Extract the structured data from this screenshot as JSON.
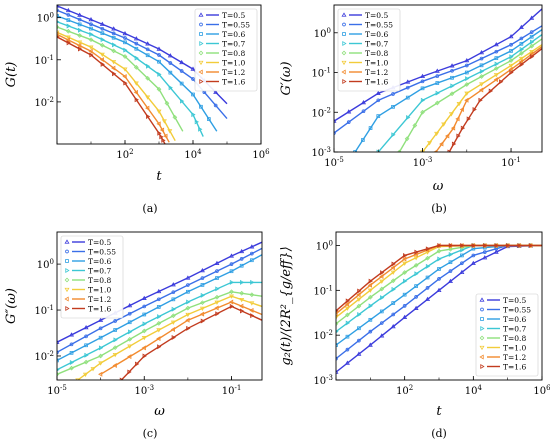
{
  "temperatures": [
    "T=0.5",
    "T=0.55",
    "T=0.6",
    "T=0.7",
    "T=0.8",
    "T=1.0",
    "T=1.2",
    "T=1.6"
  ],
  "series_colors": [
    "#3b3bdc",
    "#3a6fe8",
    "#2f9fe3",
    "#3cc7d4",
    "#8fe07c",
    "#f2cc3a",
    "#f28a2e",
    "#c23b1e"
  ],
  "marker_shapes": [
    "triangle",
    "circle",
    "square",
    "triangle-right",
    "diamond",
    "triangle-down",
    "triangle-left",
    "triangle-right"
  ],
  "chart_data": [
    {
      "type": "line",
      "panel_label": "(a)",
      "xlabel": "t",
      "ylabel": "G(t)",
      "xscale": "log",
      "yscale": "log",
      "xlim": [
        1,
        1000000
      ],
      "ylim": [
        0.001,
        2
      ],
      "xticks": [
        "10^2",
        "10^4",
        "10^6"
      ],
      "yticks": [
        "10^{-2}",
        "10^{-1}",
        "10^0"
      ],
      "legend_position": "top-right",
      "series": [
        {
          "name": "T=0.5",
          "x": [
            1,
            10,
            100,
            1000,
            10000,
            100000
          ],
          "y": [
            1.9,
            0.9,
            0.42,
            0.18,
            0.06,
            0.009
          ]
        },
        {
          "name": "T=0.55",
          "x": [
            1,
            10,
            100,
            1000,
            10000,
            100000
          ],
          "y": [
            1.5,
            0.7,
            0.33,
            0.13,
            0.035,
            0.004
          ]
        },
        {
          "name": "T=0.6",
          "x": [
            1,
            10,
            100,
            1000,
            10000,
            50000
          ],
          "y": [
            1.1,
            0.55,
            0.26,
            0.09,
            0.015,
            0.002
          ]
        },
        {
          "name": "T=0.7",
          "x": [
            1,
            10,
            100,
            1000,
            10000,
            20000
          ],
          "y": [
            0.8,
            0.4,
            0.17,
            0.045,
            0.005,
            0.0015
          ]
        },
        {
          "name": "T=0.8",
          "x": [
            1,
            10,
            100,
            1000,
            5000
          ],
          "y": [
            0.6,
            0.3,
            0.12,
            0.02,
            0.002
          ]
        },
        {
          "name": "T=1.0",
          "x": [
            1,
            10,
            100,
            1000,
            3000
          ],
          "y": [
            0.45,
            0.2,
            0.06,
            0.006,
            0.0012
          ]
        },
        {
          "name": "T=1.2",
          "x": [
            1,
            10,
            100,
            1000,
            2000
          ],
          "y": [
            0.4,
            0.16,
            0.04,
            0.003,
            0.0011
          ]
        },
        {
          "name": "T=1.6",
          "x": [
            1,
            10,
            100,
            1000,
            1500
          ],
          "y": [
            0.35,
            0.13,
            0.028,
            0.0018,
            0.001
          ]
        }
      ]
    },
    {
      "type": "line",
      "panel_label": "(b)",
      "xlabel": "ω",
      "ylabel": "G′(ω)",
      "xscale": "log",
      "yscale": "log",
      "xlim": [
        1e-05,
        0.5
      ],
      "ylim": [
        0.001,
        5
      ],
      "xticks": [
        "10^{-5}",
        "10^{-3}",
        "10^{-1}"
      ],
      "yticks": [
        "10^{-3}",
        "10^{-2}",
        "10^{-1}",
        "10^0"
      ],
      "legend_position": "top-left",
      "series": [
        {
          "name": "T=0.5",
          "x": [
            1e-05,
            0.0001,
            0.001,
            0.01,
            0.1,
            0.5
          ],
          "y": [
            0.006,
            0.03,
            0.08,
            0.2,
            0.8,
            4
          ]
        },
        {
          "name": "T=0.55",
          "x": [
            1e-05,
            0.0001,
            0.001,
            0.01,
            0.1,
            0.5
          ],
          "y": [
            0.003,
            0.02,
            0.06,
            0.15,
            0.5,
            1.5
          ]
        },
        {
          "name": "T=0.6",
          "x": [
            3e-05,
            0.0001,
            0.001,
            0.01,
            0.1,
            0.5
          ],
          "y": [
            0.001,
            0.008,
            0.04,
            0.1,
            0.35,
            1.2
          ]
        },
        {
          "name": "T=0.7",
          "x": [
            0.0001,
            0.001,
            0.01,
            0.1,
            0.5
          ],
          "y": [
            0.001,
            0.02,
            0.07,
            0.25,
            0.9
          ]
        },
        {
          "name": "T=0.8",
          "x": [
            0.0003,
            0.001,
            0.01,
            0.1,
            0.5
          ],
          "y": [
            0.001,
            0.01,
            0.05,
            0.2,
            0.7
          ]
        },
        {
          "name": "T=1.0",
          "x": [
            0.001,
            0.003,
            0.01,
            0.1,
            0.5
          ],
          "y": [
            0.001,
            0.005,
            0.03,
            0.15,
            0.5
          ]
        },
        {
          "name": "T=1.2",
          "x": [
            0.002,
            0.005,
            0.01,
            0.1,
            0.5
          ],
          "y": [
            0.001,
            0.004,
            0.02,
            0.12,
            0.45
          ]
        },
        {
          "name": "T=1.6",
          "x": [
            0.004,
            0.008,
            0.02,
            0.1,
            0.5
          ],
          "y": [
            0.001,
            0.004,
            0.02,
            0.1,
            0.4
          ]
        }
      ]
    },
    {
      "type": "line",
      "panel_label": "(c)",
      "xlabel": "ω",
      "ylabel": "G″(ω)",
      "xscale": "log",
      "yscale": "log",
      "xlim": [
        1e-05,
        0.5
      ],
      "ylim": [
        0.003,
        5
      ],
      "xticks": [
        "10^{-5}",
        "10^{-3}",
        "10^{-1}"
      ],
      "yticks": [
        "10^{-2}",
        "10^{-1}",
        "10^0"
      ],
      "legend_position": "top-left",
      "series": [
        {
          "name": "T=0.5",
          "x": [
            1e-05,
            0.0001,
            0.001,
            0.01,
            0.1,
            0.5
          ],
          "y": [
            0.02,
            0.06,
            0.18,
            0.5,
            1.5,
            3
          ]
        },
        {
          "name": "T=0.55",
          "x": [
            1e-05,
            0.0001,
            0.001,
            0.01,
            0.1,
            0.5
          ],
          "y": [
            0.012,
            0.04,
            0.12,
            0.35,
            1.0,
            2.2
          ]
        },
        {
          "name": "T=0.6",
          "x": [
            1e-05,
            0.0001,
            0.001,
            0.01,
            0.1,
            0.5
          ],
          "y": [
            0.008,
            0.025,
            0.08,
            0.25,
            0.7,
            1.6
          ]
        },
        {
          "name": "T=0.7",
          "x": [
            1e-05,
            0.0001,
            0.001,
            0.01,
            0.1,
            0.5
          ],
          "y": [
            0.005,
            0.015,
            0.05,
            0.15,
            0.4,
            0.4
          ]
        },
        {
          "name": "T=0.8",
          "x": [
            1e-05,
            0.0001,
            0.001,
            0.01,
            0.1,
            0.5
          ],
          "y": [
            0.004,
            0.01,
            0.035,
            0.11,
            0.25,
            0.2
          ]
        },
        {
          "name": "T=1.0",
          "x": [
            3e-05,
            0.0001,
            0.001,
            0.01,
            0.1,
            0.5
          ],
          "y": [
            0.003,
            0.007,
            0.025,
            0.08,
            0.2,
            0.12
          ]
        },
        {
          "name": "T=1.2",
          "x": [
            0.0001,
            0.001,
            0.01,
            0.1,
            0.5
          ],
          "y": [
            0.004,
            0.015,
            0.06,
            0.15,
            0.08
          ]
        },
        {
          "name": "T=1.6",
          "x": [
            0.0003,
            0.001,
            0.01,
            0.1,
            0.5
          ],
          "y": [
            0.003,
            0.01,
            0.04,
            0.12,
            0.06
          ]
        }
      ]
    },
    {
      "type": "line",
      "panel_label": "(d)",
      "xlabel": "t",
      "ylabel": "g₂(t)/⟨2R²_{g/eff}⟩",
      "xscale": "log",
      "yscale": "log",
      "xlim": [
        1,
        1000000
      ],
      "ylim": [
        0.001,
        2
      ],
      "xticks": [
        "10^2",
        "10^4",
        "10^6"
      ],
      "yticks": [
        "10^{-3}",
        "10^{-2}",
        "10^{-1}",
        "10^0"
      ],
      "legend_position": "bottom-right",
      "series": [
        {
          "name": "T=0.5",
          "x": [
            1,
            10,
            100,
            1000,
            10000,
            100000,
            1000000
          ],
          "y": [
            0.0015,
            0.006,
            0.025,
            0.1,
            0.4,
            0.95,
            1
          ]
        },
        {
          "name": "T=0.55",
          "x": [
            1,
            10,
            100,
            1000,
            10000,
            100000,
            1000000
          ],
          "y": [
            0.003,
            0.012,
            0.045,
            0.18,
            0.6,
            1,
            1
          ]
        },
        {
          "name": "T=0.6",
          "x": [
            1,
            10,
            100,
            1000,
            10000,
            100000,
            1000000
          ],
          "y": [
            0.006,
            0.022,
            0.08,
            0.3,
            0.85,
            1,
            1
          ]
        },
        {
          "name": "T=0.7",
          "x": [
            1,
            10,
            100,
            1000,
            10000,
            100000,
            1000000
          ],
          "y": [
            0.012,
            0.045,
            0.16,
            0.5,
            1,
            1,
            1
          ]
        },
        {
          "name": "T=0.8",
          "x": [
            1,
            10,
            100,
            1000,
            10000,
            100000,
            1000000
          ],
          "y": [
            0.018,
            0.07,
            0.25,
            0.75,
            1,
            1,
            1
          ]
        },
        {
          "name": "T=1.0",
          "x": [
            1,
            10,
            100,
            1000,
            10000,
            100000,
            1000000
          ],
          "y": [
            0.025,
            0.1,
            0.4,
            0.95,
            1,
            1,
            1
          ]
        },
        {
          "name": "T=1.2",
          "x": [
            1,
            10,
            100,
            1000,
            10000,
            100000,
            1000000
          ],
          "y": [
            0.03,
            0.13,
            0.5,
            1,
            1,
            1,
            1
          ]
        },
        {
          "name": "T=1.6",
          "x": [
            1,
            10,
            100,
            1000,
            10000,
            100000,
            1000000
          ],
          "y": [
            0.035,
            0.16,
            0.6,
            1,
            1,
            1,
            1
          ]
        }
      ]
    }
  ]
}
